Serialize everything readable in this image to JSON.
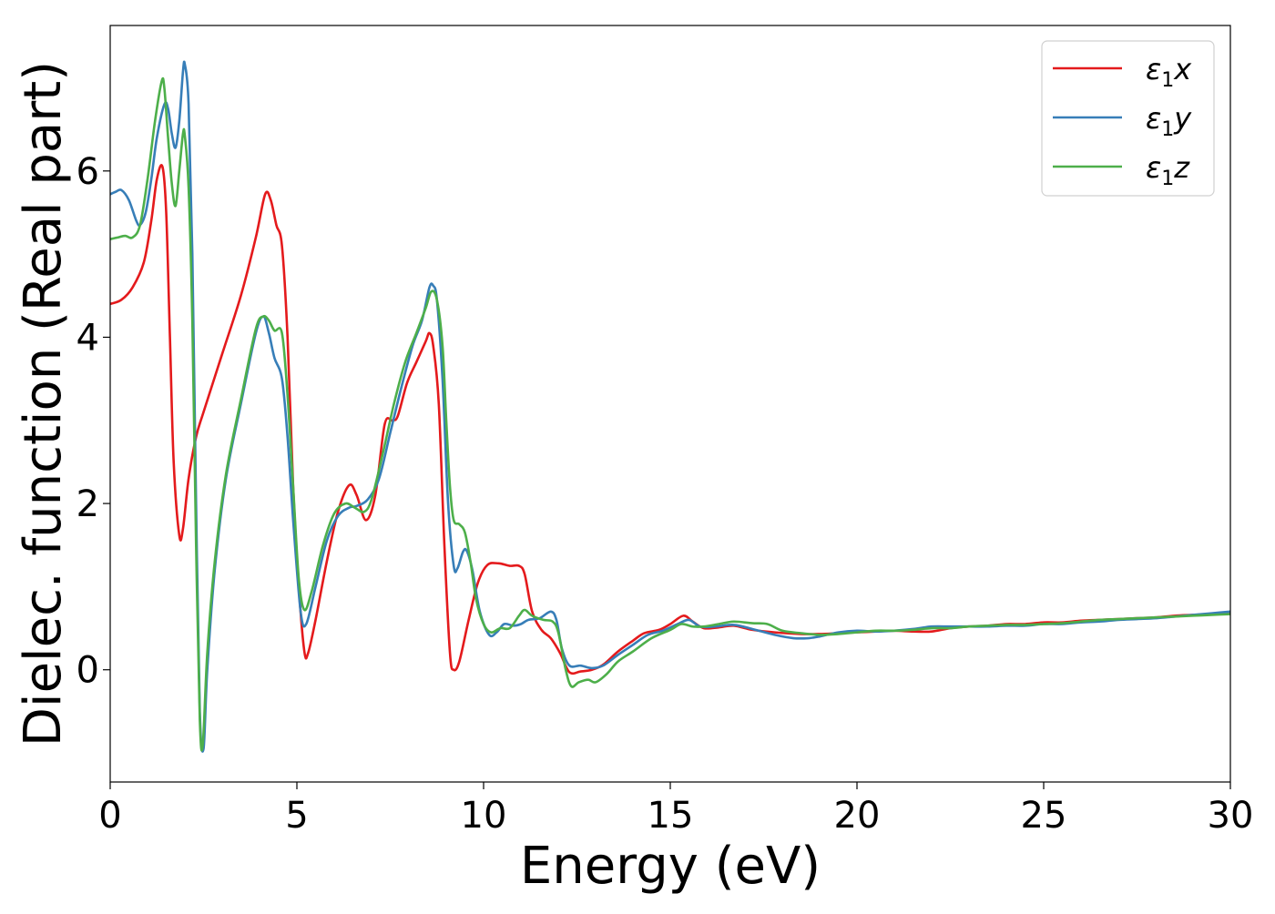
{
  "chart_data": {
    "type": "line",
    "title": "",
    "xlabel": "Energy (eV)",
    "ylabel": "Dielec. function (Real part)",
    "xlim": [
      0,
      30
    ],
    "ylim": [
      -1.35,
      7.75
    ],
    "xticks": [
      0,
      5,
      10,
      15,
      20,
      25,
      30
    ],
    "yticks": [
      0,
      2,
      4,
      6
    ],
    "grid": false,
    "legend_position": "top-right",
    "series": [
      {
        "name": "ε₁x",
        "legend_main": "ε",
        "legend_sub": "1",
        "legend_suffix": "x",
        "color": "#e41a1c",
        "points": [
          [
            0,
            4.4
          ],
          [
            0.3,
            4.45
          ],
          [
            0.6,
            4.6
          ],
          [
            0.9,
            4.9
          ],
          [
            1.1,
            5.4
          ],
          [
            1.25,
            5.9
          ],
          [
            1.4,
            6.05
          ],
          [
            1.5,
            5.5
          ],
          [
            1.6,
            4.0
          ],
          [
            1.7,
            2.5
          ],
          [
            1.85,
            1.62
          ],
          [
            1.95,
            1.7
          ],
          [
            2.1,
            2.3
          ],
          [
            2.3,
            2.8
          ],
          [
            2.5,
            3.1
          ],
          [
            3.0,
            3.8
          ],
          [
            3.5,
            4.5
          ],
          [
            3.9,
            5.2
          ],
          [
            4.15,
            5.72
          ],
          [
            4.3,
            5.65
          ],
          [
            4.45,
            5.35
          ],
          [
            4.6,
            5.1
          ],
          [
            4.75,
            4.0
          ],
          [
            4.9,
            2.2
          ],
          [
            5.05,
            1.0
          ],
          [
            5.2,
            0.22
          ],
          [
            5.3,
            0.2
          ],
          [
            5.5,
            0.6
          ],
          [
            5.8,
            1.3
          ],
          [
            6.1,
            1.9
          ],
          [
            6.4,
            2.22
          ],
          [
            6.6,
            2.1
          ],
          [
            6.85,
            1.8
          ],
          [
            7.1,
            2.1
          ],
          [
            7.35,
            2.95
          ],
          [
            7.55,
            3.0
          ],
          [
            7.7,
            3.05
          ],
          [
            7.95,
            3.45
          ],
          [
            8.2,
            3.7
          ],
          [
            8.45,
            3.95
          ],
          [
            8.55,
            4.05
          ],
          [
            8.65,
            3.9
          ],
          [
            8.8,
            3.2
          ],
          [
            8.95,
            1.5
          ],
          [
            9.1,
            0.2
          ],
          [
            9.2,
            0.0
          ],
          [
            9.35,
            0.1
          ],
          [
            9.6,
            0.6
          ],
          [
            9.85,
            1.05
          ],
          [
            10.1,
            1.26
          ],
          [
            10.4,
            1.28
          ],
          [
            10.7,
            1.25
          ],
          [
            10.95,
            1.25
          ],
          [
            11.1,
            1.15
          ],
          [
            11.3,
            0.7
          ],
          [
            11.55,
            0.48
          ],
          [
            11.8,
            0.38
          ],
          [
            12.05,
            0.2
          ],
          [
            12.3,
            -0.03
          ],
          [
            12.6,
            -0.02
          ],
          [
            12.9,
            0.0
          ],
          [
            13.2,
            0.06
          ],
          [
            13.6,
            0.22
          ],
          [
            14.0,
            0.35
          ],
          [
            14.3,
            0.44
          ],
          [
            14.7,
            0.48
          ],
          [
            15.0,
            0.55
          ],
          [
            15.35,
            0.65
          ],
          [
            15.6,
            0.58
          ],
          [
            15.9,
            0.5
          ],
          [
            16.3,
            0.51
          ],
          [
            16.7,
            0.53
          ],
          [
            17.2,
            0.48
          ],
          [
            17.8,
            0.45
          ],
          [
            18.5,
            0.43
          ],
          [
            19.0,
            0.43
          ],
          [
            19.5,
            0.44
          ],
          [
            20.0,
            0.45
          ],
          [
            20.5,
            0.46
          ],
          [
            21.0,
            0.47
          ],
          [
            21.5,
            0.46
          ],
          [
            22.0,
            0.46
          ],
          [
            22.5,
            0.5
          ],
          [
            23.0,
            0.52
          ],
          [
            23.5,
            0.53
          ],
          [
            24.0,
            0.55
          ],
          [
            24.5,
            0.55
          ],
          [
            25.0,
            0.57
          ],
          [
            25.5,
            0.57
          ],
          [
            26.0,
            0.59
          ],
          [
            26.5,
            0.6
          ],
          [
            27.0,
            0.61
          ],
          [
            27.5,
            0.62
          ],
          [
            28.0,
            0.63
          ],
          [
            28.5,
            0.65
          ],
          [
            29.0,
            0.66
          ],
          [
            29.5,
            0.67
          ],
          [
            30,
            0.68
          ]
        ]
      },
      {
        "name": "ε₁y",
        "legend_main": "ε",
        "legend_sub": "1",
        "legend_suffix": "y",
        "color": "#377eb8",
        "points": [
          [
            0,
            5.72
          ],
          [
            0.15,
            5.75
          ],
          [
            0.3,
            5.77
          ],
          [
            0.5,
            5.65
          ],
          [
            0.7,
            5.4
          ],
          [
            0.8,
            5.35
          ],
          [
            0.95,
            5.5
          ],
          [
            1.1,
            5.9
          ],
          [
            1.25,
            6.4
          ],
          [
            1.45,
            6.8
          ],
          [
            1.55,
            6.75
          ],
          [
            1.65,
            6.45
          ],
          [
            1.75,
            6.28
          ],
          [
            1.85,
            6.6
          ],
          [
            1.95,
            7.2
          ],
          [
            2.0,
            7.28
          ],
          [
            2.1,
            6.8
          ],
          [
            2.2,
            5.0
          ],
          [
            2.3,
            2.0
          ],
          [
            2.4,
            -0.5
          ],
          [
            2.5,
            -0.95
          ],
          [
            2.6,
            0.0
          ],
          [
            2.8,
            1.2
          ],
          [
            3.1,
            2.3
          ],
          [
            3.5,
            3.2
          ],
          [
            3.9,
            4.05
          ],
          [
            4.1,
            4.25
          ],
          [
            4.25,
            4.05
          ],
          [
            4.4,
            3.75
          ],
          [
            4.6,
            3.5
          ],
          [
            4.75,
            2.8
          ],
          [
            4.9,
            1.8
          ],
          [
            5.1,
            0.7
          ],
          [
            5.25,
            0.55
          ],
          [
            5.5,
            1.0
          ],
          [
            5.8,
            1.55
          ],
          [
            6.1,
            1.85
          ],
          [
            6.4,
            1.95
          ],
          [
            6.6,
            1.97
          ],
          [
            6.9,
            2.05
          ],
          [
            7.2,
            2.3
          ],
          [
            7.5,
            2.85
          ],
          [
            7.8,
            3.4
          ],
          [
            8.1,
            3.9
          ],
          [
            8.35,
            4.2
          ],
          [
            8.55,
            4.6
          ],
          [
            8.65,
            4.62
          ],
          [
            8.75,
            4.45
          ],
          [
            8.9,
            3.5
          ],
          [
            9.05,
            2.0
          ],
          [
            9.2,
            1.25
          ],
          [
            9.3,
            1.22
          ],
          [
            9.45,
            1.42
          ],
          [
            9.55,
            1.43
          ],
          [
            9.7,
            1.2
          ],
          [
            9.9,
            0.7
          ],
          [
            10.15,
            0.42
          ],
          [
            10.35,
            0.45
          ],
          [
            10.55,
            0.55
          ],
          [
            10.8,
            0.53
          ],
          [
            11.0,
            0.55
          ],
          [
            11.2,
            0.6
          ],
          [
            11.5,
            0.62
          ],
          [
            11.8,
            0.7
          ],
          [
            11.95,
            0.6
          ],
          [
            12.1,
            0.25
          ],
          [
            12.3,
            0.05
          ],
          [
            12.6,
            0.05
          ],
          [
            12.9,
            0.02
          ],
          [
            13.2,
            0.05
          ],
          [
            13.6,
            0.18
          ],
          [
            14.0,
            0.3
          ],
          [
            14.4,
            0.42
          ],
          [
            14.8,
            0.47
          ],
          [
            15.2,
            0.55
          ],
          [
            15.5,
            0.6
          ],
          [
            15.8,
            0.52
          ],
          [
            16.2,
            0.52
          ],
          [
            16.7,
            0.54
          ],
          [
            17.2,
            0.49
          ],
          [
            17.8,
            0.42
          ],
          [
            18.3,
            0.38
          ],
          [
            18.7,
            0.38
          ],
          [
            19.0,
            0.4
          ],
          [
            19.5,
            0.45
          ],
          [
            20.0,
            0.47
          ],
          [
            20.5,
            0.46
          ],
          [
            21.0,
            0.47
          ],
          [
            21.5,
            0.49
          ],
          [
            22.0,
            0.52
          ],
          [
            22.5,
            0.52
          ],
          [
            23.0,
            0.52
          ],
          [
            23.5,
            0.52
          ],
          [
            24.0,
            0.53
          ],
          [
            24.5,
            0.53
          ],
          [
            25.0,
            0.55
          ],
          [
            25.5,
            0.55
          ],
          [
            26.0,
            0.57
          ],
          [
            26.5,
            0.58
          ],
          [
            27.0,
            0.6
          ],
          [
            27.5,
            0.61
          ],
          [
            28.0,
            0.62
          ],
          [
            28.5,
            0.64
          ],
          [
            29.0,
            0.66
          ],
          [
            29.5,
            0.68
          ],
          [
            30,
            0.7
          ]
        ]
      },
      {
        "name": "ε₁z",
        "legend_main": "ε",
        "legend_sub": "1",
        "legend_suffix": "z",
        "color": "#4daf4a",
        "points": [
          [
            0,
            5.18
          ],
          [
            0.2,
            5.2
          ],
          [
            0.4,
            5.22
          ],
          [
            0.6,
            5.2
          ],
          [
            0.8,
            5.35
          ],
          [
            1.0,
            5.9
          ],
          [
            1.2,
            6.6
          ],
          [
            1.38,
            7.08
          ],
          [
            1.45,
            7.0
          ],
          [
            1.55,
            6.4
          ],
          [
            1.65,
            5.85
          ],
          [
            1.75,
            5.58
          ],
          [
            1.85,
            6.0
          ],
          [
            1.95,
            6.45
          ],
          [
            2.0,
            6.42
          ],
          [
            2.1,
            5.8
          ],
          [
            2.2,
            4.2
          ],
          [
            2.3,
            1.5
          ],
          [
            2.4,
            -0.6
          ],
          [
            2.48,
            -0.9
          ],
          [
            2.6,
            0.2
          ],
          [
            2.8,
            1.3
          ],
          [
            3.1,
            2.35
          ],
          [
            3.5,
            3.25
          ],
          [
            3.9,
            4.1
          ],
          [
            4.1,
            4.25
          ],
          [
            4.25,
            4.2
          ],
          [
            4.4,
            4.08
          ],
          [
            4.6,
            4.05
          ],
          [
            4.75,
            3.3
          ],
          [
            4.9,
            2.2
          ],
          [
            5.05,
            1.1
          ],
          [
            5.2,
            0.72
          ],
          [
            5.4,
            0.95
          ],
          [
            5.7,
            1.5
          ],
          [
            6.0,
            1.88
          ],
          [
            6.3,
            2.0
          ],
          [
            6.55,
            1.95
          ],
          [
            6.8,
            1.9
          ],
          [
            7.0,
            2.05
          ],
          [
            7.3,
            2.6
          ],
          [
            7.6,
            3.2
          ],
          [
            7.9,
            3.7
          ],
          [
            8.2,
            4.05
          ],
          [
            8.45,
            4.35
          ],
          [
            8.6,
            4.55
          ],
          [
            8.75,
            4.45
          ],
          [
            8.9,
            3.9
          ],
          [
            9.0,
            3.0
          ],
          [
            9.1,
            2.2
          ],
          [
            9.2,
            1.8
          ],
          [
            9.35,
            1.75
          ],
          [
            9.5,
            1.65
          ],
          [
            9.65,
            1.3
          ],
          [
            9.8,
            0.85
          ],
          [
            10.0,
            0.55
          ],
          [
            10.2,
            0.45
          ],
          [
            10.45,
            0.5
          ],
          [
            10.7,
            0.5
          ],
          [
            10.95,
            0.65
          ],
          [
            11.1,
            0.72
          ],
          [
            11.3,
            0.65
          ],
          [
            11.6,
            0.6
          ],
          [
            11.85,
            0.58
          ],
          [
            12.0,
            0.45
          ],
          [
            12.2,
            0.0
          ],
          [
            12.35,
            -0.2
          ],
          [
            12.55,
            -0.15
          ],
          [
            12.8,
            -0.12
          ],
          [
            13.0,
            -0.15
          ],
          [
            13.3,
            -0.05
          ],
          [
            13.6,
            0.1
          ],
          [
            14.0,
            0.22
          ],
          [
            14.5,
            0.38
          ],
          [
            15.0,
            0.48
          ],
          [
            15.3,
            0.55
          ],
          [
            15.6,
            0.52
          ],
          [
            15.9,
            0.52
          ],
          [
            16.3,
            0.55
          ],
          [
            16.7,
            0.58
          ],
          [
            17.2,
            0.56
          ],
          [
            17.6,
            0.55
          ],
          [
            18.0,
            0.47
          ],
          [
            18.5,
            0.44
          ],
          [
            19.0,
            0.42
          ],
          [
            19.5,
            0.43
          ],
          [
            20.0,
            0.45
          ],
          [
            20.5,
            0.47
          ],
          [
            21.0,
            0.47
          ],
          [
            21.5,
            0.48
          ],
          [
            22.0,
            0.5
          ],
          [
            22.5,
            0.5
          ],
          [
            23.0,
            0.52
          ],
          [
            23.5,
            0.53
          ],
          [
            24.0,
            0.54
          ],
          [
            24.5,
            0.54
          ],
          [
            25.0,
            0.55
          ],
          [
            25.5,
            0.56
          ],
          [
            26.0,
            0.58
          ],
          [
            26.5,
            0.6
          ],
          [
            27.0,
            0.61
          ],
          [
            27.5,
            0.62
          ],
          [
            28.0,
            0.63
          ],
          [
            28.5,
            0.64
          ],
          [
            29.0,
            0.65
          ],
          [
            29.5,
            0.66
          ],
          [
            30,
            0.67
          ]
        ]
      }
    ]
  }
}
